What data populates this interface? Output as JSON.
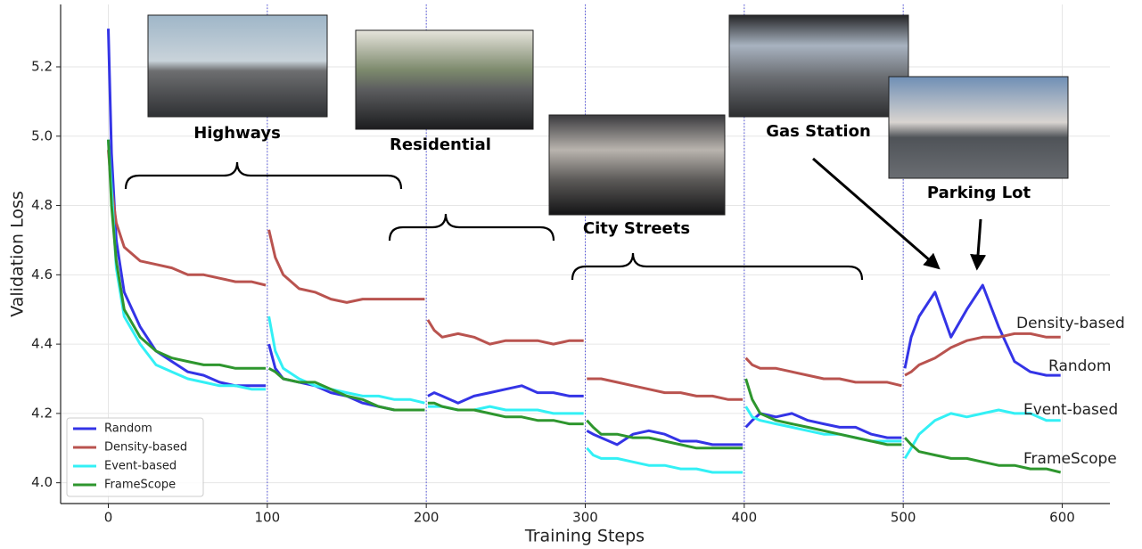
{
  "chart_data": {
    "type": "line",
    "xlabel": "Training Steps",
    "ylabel": "Validation Loss",
    "xlim": [
      -30,
      630
    ],
    "ylim": [
      3.94,
      5.38
    ],
    "xticks": [
      0,
      100,
      200,
      300,
      400,
      500,
      600
    ],
    "yticks": [
      {
        "value": 4,
        "label": "4.0"
      },
      4.2,
      4.4,
      4.6,
      4.8,
      {
        "value": 5,
        "label": "5.0"
      },
      5.2
    ],
    "grid": true,
    "legend": "lower left",
    "vlines": [
      100,
      200,
      300,
      400,
      500
    ],
    "annotations": [
      "Highways",
      "Residential",
      "City Streets",
      "Gas Station",
      "Parking Lot"
    ],
    "x": [
      0,
      2,
      5,
      10,
      20,
      30,
      40,
      50,
      60,
      70,
      80,
      90,
      99,
      100,
      101,
      105,
      110,
      120,
      130,
      140,
      150,
      160,
      170,
      180,
      190,
      199,
      200,
      201,
      205,
      210,
      220,
      230,
      240,
      250,
      260,
      270,
      280,
      290,
      299,
      300,
      301,
      305,
      310,
      320,
      330,
      340,
      350,
      360,
      370,
      380,
      390,
      399,
      400,
      401,
      405,
      410,
      420,
      430,
      440,
      450,
      460,
      470,
      480,
      490,
      499,
      500,
      501,
      505,
      510,
      520,
      530,
      540,
      550,
      560,
      570,
      580,
      590,
      599
    ],
    "series": [
      {
        "name": "Random",
        "color": "#3434e6",
        "values": [
          5.31,
          4.95,
          4.7,
          4.55,
          4.45,
          4.38,
          4.35,
          4.32,
          4.31,
          4.29,
          4.28,
          4.28,
          4.28,
          null,
          4.4,
          4.33,
          4.3,
          4.29,
          4.28,
          4.26,
          4.25,
          4.23,
          4.22,
          4.21,
          4.21,
          4.21,
          null,
          4.25,
          4.26,
          4.25,
          4.23,
          4.25,
          4.26,
          4.27,
          4.28,
          4.26,
          4.26,
          4.25,
          4.25,
          null,
          4.15,
          4.14,
          4.13,
          4.11,
          4.14,
          4.15,
          4.14,
          4.12,
          4.12,
          4.11,
          4.11,
          4.11,
          null,
          4.16,
          4.18,
          4.2,
          4.19,
          4.2,
          4.18,
          4.17,
          4.16,
          4.16,
          4.14,
          4.13,
          4.13,
          null,
          4.33,
          4.42,
          4.48,
          4.55,
          4.42,
          4.5,
          4.57,
          4.45,
          4.35,
          4.32,
          4.31,
          4.31
        ]
      },
      {
        "name": "Density-based",
        "color": "#b9534f",
        "values": [
          4.96,
          4.85,
          4.75,
          4.68,
          4.64,
          4.63,
          4.62,
          4.6,
          4.6,
          4.59,
          4.58,
          4.58,
          4.57,
          null,
          4.73,
          4.65,
          4.6,
          4.56,
          4.55,
          4.53,
          4.52,
          4.53,
          4.53,
          4.53,
          4.53,
          4.53,
          null,
          4.47,
          4.44,
          4.42,
          4.43,
          4.42,
          4.4,
          4.41,
          4.41,
          4.41,
          4.4,
          4.41,
          4.41,
          null,
          4.3,
          4.3,
          4.3,
          4.29,
          4.28,
          4.27,
          4.26,
          4.26,
          4.25,
          4.25,
          4.24,
          4.24,
          null,
          4.36,
          4.34,
          4.33,
          4.33,
          4.32,
          4.31,
          4.3,
          4.3,
          4.29,
          4.29,
          4.29,
          4.28,
          null,
          4.31,
          4.32,
          4.34,
          4.36,
          4.39,
          4.41,
          4.42,
          4.42,
          4.43,
          4.43,
          4.42,
          4.42
        ]
      },
      {
        "name": "Event-based",
        "color": "#33f0f5",
        "values": [
          4.99,
          4.85,
          4.62,
          4.48,
          4.4,
          4.34,
          4.32,
          4.3,
          4.29,
          4.28,
          4.28,
          4.27,
          4.27,
          null,
          4.48,
          4.38,
          4.33,
          4.3,
          4.28,
          4.27,
          4.26,
          4.25,
          4.25,
          4.24,
          4.24,
          4.23,
          null,
          4.22,
          4.22,
          4.22,
          4.21,
          4.21,
          4.22,
          4.21,
          4.21,
          4.21,
          4.2,
          4.2,
          4.2,
          null,
          4.1,
          4.08,
          4.07,
          4.07,
          4.06,
          4.05,
          4.05,
          4.04,
          4.04,
          4.03,
          4.03,
          4.03,
          null,
          4.22,
          4.19,
          4.18,
          4.17,
          4.16,
          4.15,
          4.14,
          4.14,
          4.13,
          4.12,
          4.12,
          4.12,
          null,
          4.07,
          4.1,
          4.14,
          4.18,
          4.2,
          4.19,
          4.2,
          4.21,
          4.2,
          4.2,
          4.18,
          4.18
        ]
      },
      {
        "name": "FrameScope",
        "color": "#2e962e",
        "values": [
          4.99,
          4.8,
          4.64,
          4.5,
          4.42,
          4.38,
          4.36,
          4.35,
          4.34,
          4.34,
          4.33,
          4.33,
          4.33,
          null,
          4.33,
          4.32,
          4.3,
          4.29,
          4.29,
          4.27,
          4.25,
          4.24,
          4.22,
          4.21,
          4.21,
          4.21,
          null,
          4.23,
          4.23,
          4.22,
          4.21,
          4.21,
          4.2,
          4.19,
          4.19,
          4.18,
          4.18,
          4.17,
          4.17,
          null,
          4.18,
          4.16,
          4.14,
          4.14,
          4.13,
          4.13,
          4.12,
          4.11,
          4.1,
          4.1,
          4.1,
          4.1,
          null,
          4.3,
          4.24,
          4.2,
          4.18,
          4.17,
          4.16,
          4.15,
          4.14,
          4.13,
          4.12,
          4.11,
          4.11,
          null,
          4.13,
          4.11,
          4.09,
          4.08,
          4.07,
          4.07,
          4.06,
          4.05,
          4.05,
          4.04,
          4.04,
          4.03
        ]
      }
    ]
  }
}
